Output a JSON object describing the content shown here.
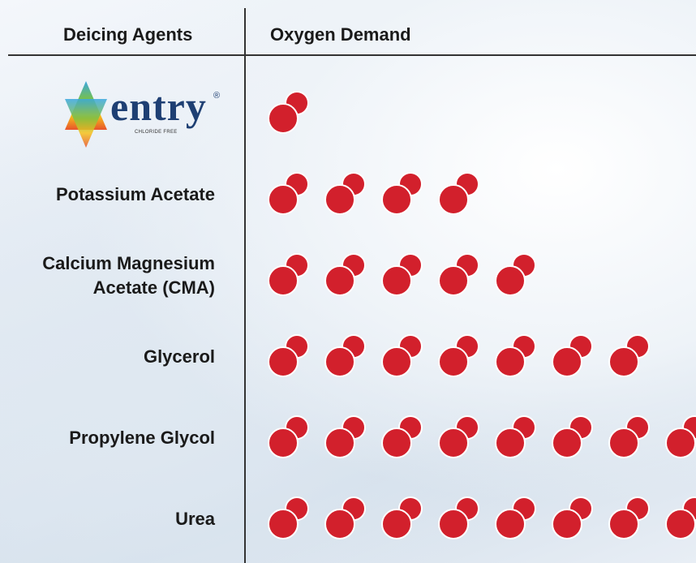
{
  "chart_data": {
    "type": "pictogram",
    "column_headers": [
      "Deicing Agents",
      "Oxygen Demand"
    ],
    "categories": [
      "entry",
      "Potassium Acetate",
      "Calcium Magnesium Acetate (CMA)",
      "Glycerol",
      "Propylene Glycol",
      "Urea"
    ],
    "logo_mark": "®",
    "logo_tagline": "CHLORIDE FREE",
    "values": [
      1,
      4,
      5,
      7,
      8,
      8
    ],
    "color": "#d2202c"
  }
}
